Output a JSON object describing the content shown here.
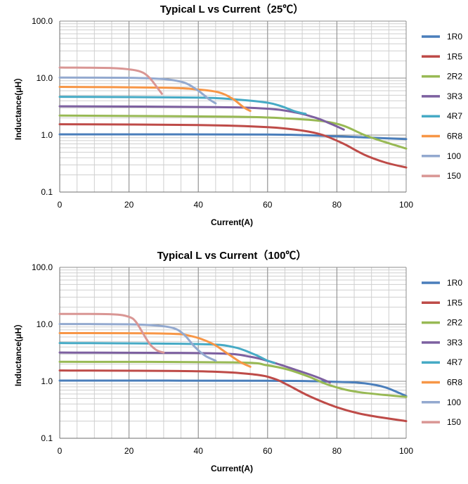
{
  "chart_data": [
    {
      "type": "line",
      "title": "Typical L vs Current（25℃）",
      "xlabel": "Current(A)",
      "ylabel": "Inductance(μH）",
      "xlim": [
        0,
        100
      ],
      "ylim": [
        0.1,
        100
      ],
      "yscale": "log",
      "x_ticks": [
        "0",
        "20",
        "40",
        "60",
        "80",
        "100"
      ],
      "y_ticks": [
        "0.1",
        "1.0",
        "10.0",
        "100.0"
      ],
      "grid": true,
      "legend": "right",
      "series": [
        {
          "name": "1R0",
          "color": "#4a7ebb",
          "points": [
            [
              0,
              1.03
            ],
            [
              60,
              1.02
            ],
            [
              80,
              0.95
            ],
            [
              90,
              0.9
            ],
            [
              100,
              0.85
            ]
          ]
        },
        {
          "name": "1R5",
          "color": "#be4b48",
          "points": [
            [
              0,
              1.55
            ],
            [
              40,
              1.5
            ],
            [
              60,
              1.38
            ],
            [
              70,
              1.2
            ],
            [
              76,
              1.0
            ],
            [
              82,
              0.7
            ],
            [
              88,
              0.45
            ],
            [
              94,
              0.33
            ],
            [
              100,
              0.27
            ]
          ]
        },
        {
          "name": "2R2",
          "color": "#98b954",
          "points": [
            [
              0,
              2.2
            ],
            [
              50,
              2.1
            ],
            [
              66,
              1.95
            ],
            [
              76,
              1.75
            ],
            [
              82,
              1.45
            ],
            [
              88,
              1.0
            ],
            [
              94,
              0.75
            ],
            [
              100,
              0.58
            ]
          ]
        },
        {
          "name": "3R3",
          "color": "#7d60a0",
          "points": [
            [
              0,
              3.2
            ],
            [
              45,
              3.1
            ],
            [
              60,
              2.9
            ],
            [
              68,
              2.5
            ],
            [
              74,
              2.0
            ],
            [
              78,
              1.6
            ],
            [
              82,
              1.25
            ]
          ]
        },
        {
          "name": "4R7",
          "color": "#46aac5",
          "points": [
            [
              0,
              4.7
            ],
            [
              40,
              4.55
            ],
            [
              52,
              4.15
            ],
            [
              60,
              3.7
            ],
            [
              64,
              3.2
            ],
            [
              68,
              2.6
            ],
            [
              71,
              2.35
            ]
          ]
        },
        {
          "name": "6R8",
          "color": "#f79646",
          "points": [
            [
              0,
              7.0
            ],
            [
              30,
              6.8
            ],
            [
              40,
              6.3
            ],
            [
              46,
              5.6
            ],
            [
              50,
              4.3
            ],
            [
              53,
              3.1
            ],
            [
              55,
              2.65
            ]
          ]
        },
        {
          "name": "100",
          "color": "#93a9cf",
          "points": [
            [
              0,
              10.2
            ],
            [
              20,
              10.1
            ],
            [
              30,
              9.6
            ],
            [
              36,
              8.3
            ],
            [
              40,
              6.0
            ],
            [
              43,
              4.3
            ],
            [
              45,
              3.6
            ]
          ]
        },
        {
          "name": "150",
          "color": "#d99694",
          "points": [
            [
              0,
              15.3
            ],
            [
              15,
              15.0
            ],
            [
              21,
              14.0
            ],
            [
              24,
              12.5
            ],
            [
              26,
              10.0
            ],
            [
              28,
              7.0
            ],
            [
              29.5,
              5.3
            ]
          ]
        }
      ]
    },
    {
      "type": "line",
      "title": "Typical L vs Current（100℃）",
      "xlabel": "Current(A)",
      "ylabel": "Inductance(μH）",
      "xlim": [
        0,
        100
      ],
      "ylim": [
        0.1,
        100
      ],
      "yscale": "log",
      "x_ticks": [
        "0",
        "20",
        "40",
        "60",
        "80",
        "100"
      ],
      "y_ticks": [
        "0.1",
        "1.0",
        "10.0",
        "100.0"
      ],
      "grid": true,
      "legend": "right",
      "series": [
        {
          "name": "1R0",
          "color": "#4a7ebb",
          "points": [
            [
              0,
              1.03
            ],
            [
              60,
              1.02
            ],
            [
              80,
              0.98
            ],
            [
              88,
              0.92
            ],
            [
              94,
              0.78
            ],
            [
              100,
              0.55
            ]
          ]
        },
        {
          "name": "1R5",
          "color": "#be4b48",
          "points": [
            [
              0,
              1.55
            ],
            [
              40,
              1.5
            ],
            [
              56,
              1.32
            ],
            [
              62,
              1.1
            ],
            [
              66,
              0.85
            ],
            [
              72,
              0.55
            ],
            [
              80,
              0.35
            ],
            [
              88,
              0.26
            ],
            [
              100,
              0.2
            ]
          ]
        },
        {
          "name": "2R2",
          "color": "#98b954",
          "points": [
            [
              0,
              2.2
            ],
            [
              50,
              2.15
            ],
            [
              60,
              1.9
            ],
            [
              66,
              1.6
            ],
            [
              72,
              1.2
            ],
            [
              78,
              0.85
            ],
            [
              86,
              0.65
            ],
            [
              100,
              0.53
            ]
          ]
        },
        {
          "name": "3R3",
          "color": "#7d60a0",
          "points": [
            [
              0,
              3.2
            ],
            [
              44,
              3.1
            ],
            [
              55,
              2.7
            ],
            [
              62,
              2.1
            ],
            [
              68,
              1.6
            ],
            [
              74,
              1.2
            ],
            [
              78,
              0.95
            ]
          ]
        },
        {
          "name": "4R7",
          "color": "#46aac5",
          "points": [
            [
              0,
              4.7
            ],
            [
              40,
              4.5
            ],
            [
              50,
              4.0
            ],
            [
              56,
              3.0
            ],
            [
              60,
              2.3
            ],
            [
              62,
              2.1
            ]
          ]
        },
        {
          "name": "6R8",
          "color": "#f79646",
          "points": [
            [
              0,
              7.0
            ],
            [
              30,
              6.9
            ],
            [
              38,
              6.2
            ],
            [
              44,
              4.6
            ],
            [
              48,
              3.2
            ],
            [
              52,
              2.2
            ],
            [
              55,
              1.8
            ]
          ]
        },
        {
          "name": "100",
          "color": "#93a9cf",
          "points": [
            [
              0,
              10.1
            ],
            [
              20,
              10.0
            ],
            [
              28,
              9.5
            ],
            [
              33,
              8.5
            ],
            [
              36,
              6.5
            ],
            [
              39,
              4.0
            ],
            [
              42,
              2.8
            ],
            [
              45,
              2.3
            ]
          ]
        },
        {
          "name": "150",
          "color": "#d99694",
          "points": [
            [
              0,
              15.2
            ],
            [
              15,
              15.0
            ],
            [
              20,
              13.5
            ],
            [
              22,
              11.0
            ],
            [
              24,
              7.0
            ],
            [
              26,
              4.5
            ],
            [
              28,
              3.5
            ],
            [
              30,
              3.2
            ]
          ]
        }
      ]
    }
  ]
}
